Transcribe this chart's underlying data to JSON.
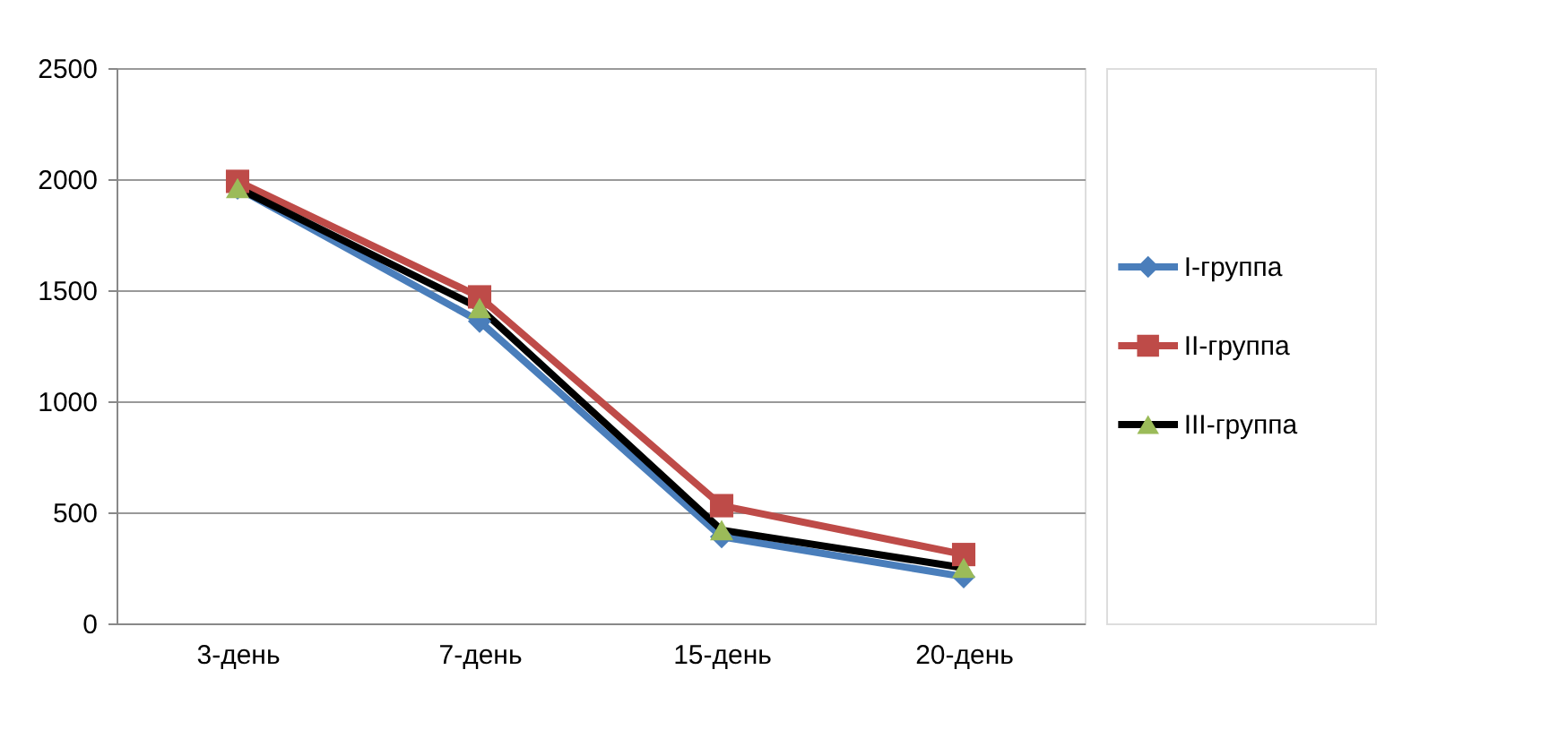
{
  "chart_data": {
    "type": "line",
    "categories": [
      "3-день",
      "7-день",
      "15-день",
      "20-день"
    ],
    "series": [
      {
        "name": "I-группа",
        "color": "#4a7ebb",
        "marker": "diamond",
        "values": [
          1960,
          1360,
          390,
          210
        ]
      },
      {
        "name": "II-группа",
        "color": "#be4b48",
        "marker": "square",
        "values": [
          1990,
          1470,
          530,
          310
        ]
      },
      {
        "name": "III-группа",
        "color": "#000000",
        "colors": [
          "#9bbb59",
          "#9bbb59",
          "#9bbb59",
          "#9bbb59"
        ],
        "marker": "triangle",
        "values": [
          1960,
          1420,
          420,
          250
        ]
      }
    ],
    "ylim": [
      0,
      2500
    ],
    "yticks": [
      0,
      500,
      1000,
      1500,
      2000,
      2500
    ],
    "grid": "y",
    "legend": "right"
  }
}
